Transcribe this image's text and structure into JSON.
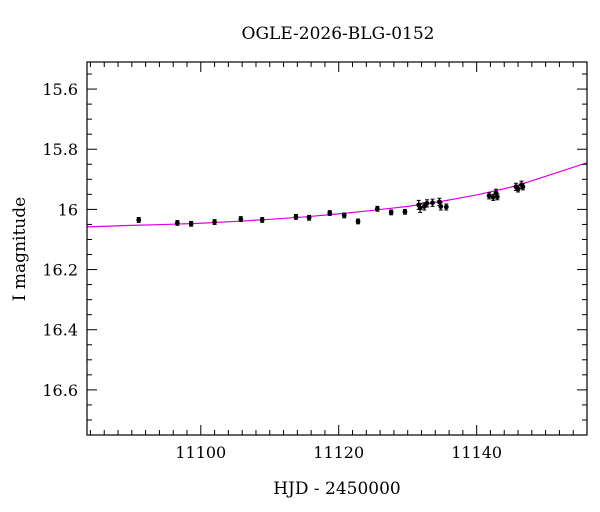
{
  "chart_data": {
    "type": "scatter",
    "title": "OGLE-2026-BLG-0152",
    "xlabel": "HJD - 2450000",
    "ylabel": "I magnitude",
    "xlim": [
      11083.5,
      11156
    ],
    "ylim": [
      15.51,
      16.75
    ],
    "y_inverted": true,
    "x_ticks": [
      11100,
      11120,
      11140
    ],
    "y_ticks": [
      15.6,
      15.8,
      16,
      16.2,
      16.4,
      16.6
    ],
    "x_tick_labels": [
      "11100",
      "11120",
      "11140"
    ],
    "y_tick_labels": [
      "15.6",
      "15.8",
      "16",
      "16.2",
      "16.4",
      "16.6"
    ],
    "x_minor_step": 2,
    "y_minor_step": 0.05,
    "grid": false,
    "model_color": "#e100e1",
    "point_color": "#000000",
    "observations": [
      {
        "x": 11091.0,
        "y": 16.035,
        "err": 0.008
      },
      {
        "x": 11096.6,
        "y": 16.045,
        "err": 0.008
      },
      {
        "x": 11098.6,
        "y": 16.048,
        "err": 0.008
      },
      {
        "x": 11102.0,
        "y": 16.042,
        "err": 0.008
      },
      {
        "x": 11105.8,
        "y": 16.032,
        "err": 0.008
      },
      {
        "x": 11108.9,
        "y": 16.035,
        "err": 0.008
      },
      {
        "x": 11113.8,
        "y": 16.025,
        "err": 0.008
      },
      {
        "x": 11115.7,
        "y": 16.028,
        "err": 0.008
      },
      {
        "x": 11118.7,
        "y": 16.012,
        "err": 0.008
      },
      {
        "x": 11120.8,
        "y": 16.02,
        "err": 0.008
      },
      {
        "x": 11122.8,
        "y": 16.04,
        "err": 0.008
      },
      {
        "x": 11125.6,
        "y": 15.998,
        "err": 0.008
      },
      {
        "x": 11127.6,
        "y": 16.01,
        "err": 0.008
      },
      {
        "x": 11129.6,
        "y": 16.008,
        "err": 0.008
      },
      {
        "x": 11131.6,
        "y": 15.985,
        "err": 0.015
      },
      {
        "x": 11131.8,
        "y": 15.995,
        "err": 0.015
      },
      {
        "x": 11132.4,
        "y": 15.99,
        "err": 0.012
      },
      {
        "x": 11132.8,
        "y": 15.98,
        "err": 0.012
      },
      {
        "x": 11133.6,
        "y": 15.978,
        "err": 0.012
      },
      {
        "x": 11134.6,
        "y": 15.975,
        "err": 0.012
      },
      {
        "x": 11134.8,
        "y": 15.99,
        "err": 0.012
      },
      {
        "x": 11135.6,
        "y": 15.992,
        "err": 0.01
      },
      {
        "x": 11141.8,
        "y": 15.955,
        "err": 0.01
      },
      {
        "x": 11142.4,
        "y": 15.96,
        "err": 0.01
      },
      {
        "x": 11142.8,
        "y": 15.945,
        "err": 0.012
      },
      {
        "x": 11143.0,
        "y": 15.958,
        "err": 0.01
      },
      {
        "x": 11145.7,
        "y": 15.925,
        "err": 0.012
      },
      {
        "x": 11146.0,
        "y": 15.932,
        "err": 0.01
      },
      {
        "x": 11146.5,
        "y": 15.918,
        "err": 0.012
      },
      {
        "x": 11146.7,
        "y": 15.925,
        "err": 0.01
      }
    ],
    "model_curve": {
      "x": [
        11083.5,
        11090,
        11095,
        11100,
        11105,
        11110,
        11115,
        11120,
        11125,
        11130,
        11135,
        11140,
        11145,
        11148,
        11150,
        11152,
        11154,
        11156
      ],
      "y": [
        16.058,
        16.053,
        16.05,
        16.046,
        16.04,
        16.033,
        16.025,
        16.015,
        16.003,
        15.99,
        15.973,
        15.952,
        15.926,
        15.905,
        15.89,
        15.875,
        15.86,
        15.845
      ]
    }
  }
}
